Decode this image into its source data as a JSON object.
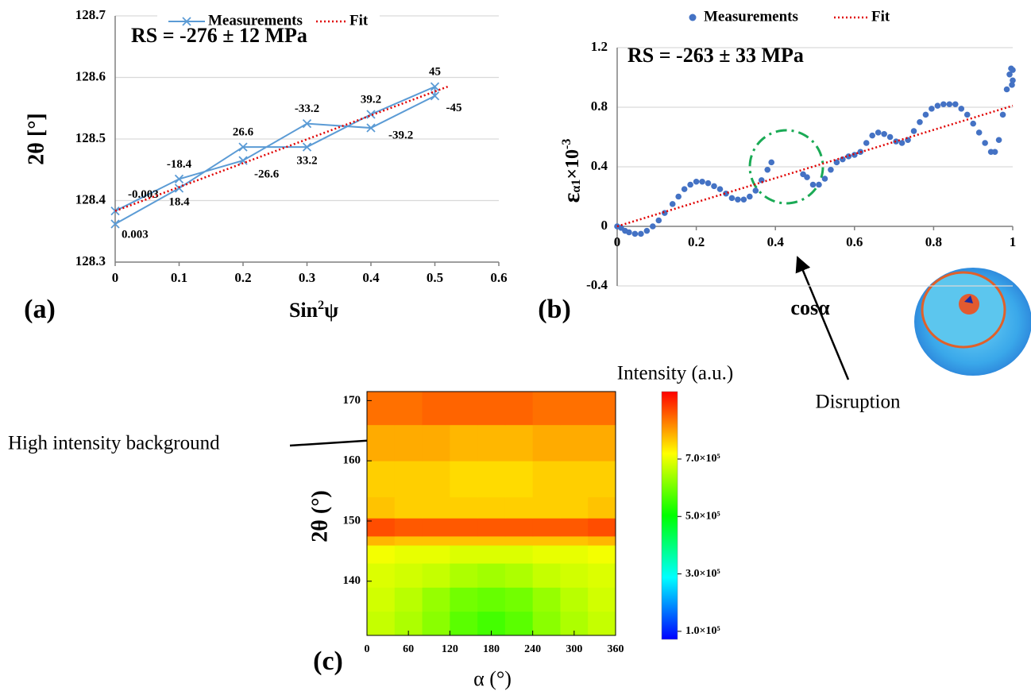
{
  "chart_data": [
    {
      "type": "line",
      "panel": "(a)",
      "annotation": "RS = -276 ± 12 MPa",
      "xlabel": [
        "Sin",
        "2",
        "ψ"
      ],
      "ylabel": "2θ [°]",
      "xlim": [
        0,
        0.6
      ],
      "xticks": [
        0,
        0.1,
        0.2,
        0.3,
        0.4,
        0.5,
        0.6
      ],
      "ylim": [
        128.3,
        128.7
      ],
      "yticks": [
        128.3,
        128.4,
        128.5,
        128.6,
        128.7
      ],
      "grid": true,
      "legend": "top",
      "series": [
        {
          "name": "Measurements",
          "color": "#5b9bd5",
          "marker": "x",
          "x": [
            0,
            0.1,
            0.2,
            0.3,
            0.4,
            0.5,
            0.5,
            0.4,
            0.3,
            0.2,
            0.1,
            0
          ],
          "values": [
            128.362,
            128.42,
            128.487,
            128.487,
            128.54,
            128.585,
            128.57,
            128.518,
            128.525,
            128.465,
            128.435,
            128.383
          ],
          "point_labels": [
            "0.003",
            "18.4",
            "26.6",
            "33.2",
            "39.2",
            "45",
            "-45",
            "-39.2",
            "-33.2",
            "-26.6",
            "-18.4",
            "-0.003"
          ]
        },
        {
          "name": "Fit",
          "color": "#e00000",
          "dash": "dotted",
          "x": [
            0,
            0.52
          ],
          "values": [
            128.383,
            128.585
          ]
        }
      ]
    },
    {
      "type": "scatter",
      "panel": "(b)",
      "annotation": "RS = -263 ± 33 MPa",
      "callout": "Disruption",
      "xlabel": "cosα",
      "ylabel": [
        "ε",
        "α1",
        "×10",
        "-3"
      ],
      "xlim": [
        0,
        1
      ],
      "xticks": [
        0,
        0.2,
        0.4,
        0.6,
        0.8,
        1
      ],
      "ylim": [
        -0.4,
        1.2
      ],
      "yticks": [
        -0.4,
        0,
        0.4,
        0.8,
        1.2
      ],
      "grid": true,
      "legend": "top",
      "series": [
        {
          "name": "Measurements",
          "color": "#4472c4",
          "marker": "circle",
          "x": [
            0,
            0.01,
            0.02,
            0.03,
            0.045,
            0.06,
            0.075,
            0.09,
            0.105,
            0.12,
            0.14,
            0.155,
            0.17,
            0.185,
            0.2,
            0.215,
            0.23,
            0.245,
            0.26,
            0.275,
            0.29,
            0.305,
            0.32,
            0.335,
            0.35,
            0.365,
            0.38,
            0.39,
            0.47,
            0.48,
            0.495,
            0.51,
            0.525,
            0.54,
            0.555,
            0.57,
            0.585,
            0.6,
            0.615,
            0.63,
            0.645,
            0.66,
            0.675,
            0.69,
            0.705,
            0.72,
            0.735,
            0.75,
            0.765,
            0.78,
            0.795,
            0.81,
            0.825,
            0.84,
            0.855,
            0.87,
            0.885,
            0.9,
            0.915,
            0.93,
            0.945,
            0.955,
            0.965,
            0.975,
            0.985,
            0.992,
            0.996,
            1,
            1,
            0.998
          ],
          "values": [
            0,
            -0.01,
            -0.03,
            -0.04,
            -0.05,
            -0.05,
            -0.03,
            0,
            0.04,
            0.09,
            0.15,
            0.2,
            0.25,
            0.28,
            0.3,
            0.3,
            0.29,
            0.27,
            0.25,
            0.22,
            0.19,
            0.18,
            0.18,
            0.2,
            0.24,
            0.31,
            0.38,
            0.43,
            0.35,
            0.33,
            0.28,
            0.28,
            0.32,
            0.38,
            0.43,
            0.45,
            0.47,
            0.48,
            0.5,
            0.56,
            0.61,
            0.63,
            0.62,
            0.6,
            0.57,
            0.56,
            0.58,
            0.64,
            0.7,
            0.75,
            0.79,
            0.81,
            0.82,
            0.82,
            0.82,
            0.79,
            0.75,
            0.69,
            0.63,
            0.56,
            0.5,
            0.5,
            0.58,
            0.75,
            0.92,
            1.02,
            1.06,
            1.05,
            0.98,
            0.95
          ]
        },
        {
          "name": "Fit",
          "color": "#e00000",
          "dash": "dotted",
          "x": [
            0,
            1
          ],
          "values": [
            0,
            0.81
          ]
        }
      ]
    },
    {
      "type": "heatmap",
      "panel": "(c)",
      "title": "Intensity (a.u.)",
      "annotation": "High intensity background",
      "xlabel": "α (°)",
      "ylabel": "2θ (°)",
      "xlim": [
        0,
        360
      ],
      "xticks": [
        0,
        60,
        120,
        180,
        240,
        300,
        360
      ],
      "ylim": [
        131,
        171.5
      ],
      "yticks": [
        140,
        150,
        160,
        170
      ],
      "x_edges": [
        0,
        40,
        80,
        120,
        160,
        200,
        240,
        280,
        320,
        360
      ],
      "y_edges": [
        131,
        135,
        139,
        143,
        146,
        147.5,
        150.5,
        154,
        160,
        166,
        171.5
      ],
      "z": [
        [
          670000.0,
          650000.0,
          620000.0,
          580000.0,
          560000.0,
          580000.0,
          620000.0,
          650000.0,
          670000.0
        ],
        [
          680000.0,
          660000.0,
          630000.0,
          600000.0,
          590000.0,
          600000.0,
          630000.0,
          660000.0,
          680000.0
        ],
        [
          690000.0,
          680000.0,
          670000.0,
          650000.0,
          640000.0,
          650000.0,
          670000.0,
          680000.0,
          690000.0
        ],
        [
          710000.0,
          700000.0,
          700000.0,
          690000.0,
          690000.0,
          690000.0,
          700000.0,
          700000.0,
          710000.0
        ],
        [
          780000.0,
          770000.0,
          770000.0,
          770000.0,
          770000.0,
          770000.0,
          770000.0,
          770000.0,
          780000.0
        ],
        [
          870000.0,
          860000.0,
          860000.0,
          860000.0,
          860000.0,
          860000.0,
          860000.0,
          860000.0,
          870000.0
        ],
        [
          770000.0,
          760000.0,
          760000.0,
          760000.0,
          760000.0,
          760000.0,
          760000.0,
          760000.0,
          770000.0
        ],
        [
          760000.0,
          760000.0,
          760000.0,
          750000.0,
          750000.0,
          750000.0,
          760000.0,
          760000.0,
          760000.0
        ],
        [
          790000.0,
          790000.0,
          790000.0,
          780000.0,
          780000.0,
          780000.0,
          790000.0,
          790000.0,
          790000.0
        ],
        [
          840000.0,
          840000.0,
          850000.0,
          850000.0,
          850000.0,
          850000.0,
          840000.0,
          840000.0,
          840000.0
        ]
      ],
      "colormap": [
        "#0000ff",
        "#00ffff",
        "#00ff00",
        "#ffff00",
        "#ff0000"
      ],
      "clim": [
        72000,
        935000
      ],
      "cticks": [
        {
          "value": 100000,
          "label": "1.0×10⁵"
        },
        {
          "value": 300000,
          "label": "3.0×10⁵"
        },
        {
          "value": 500000,
          "label": "5.0×10⁵"
        },
        {
          "value": 700000,
          "label": "7.0×10⁵"
        }
      ]
    }
  ]
}
